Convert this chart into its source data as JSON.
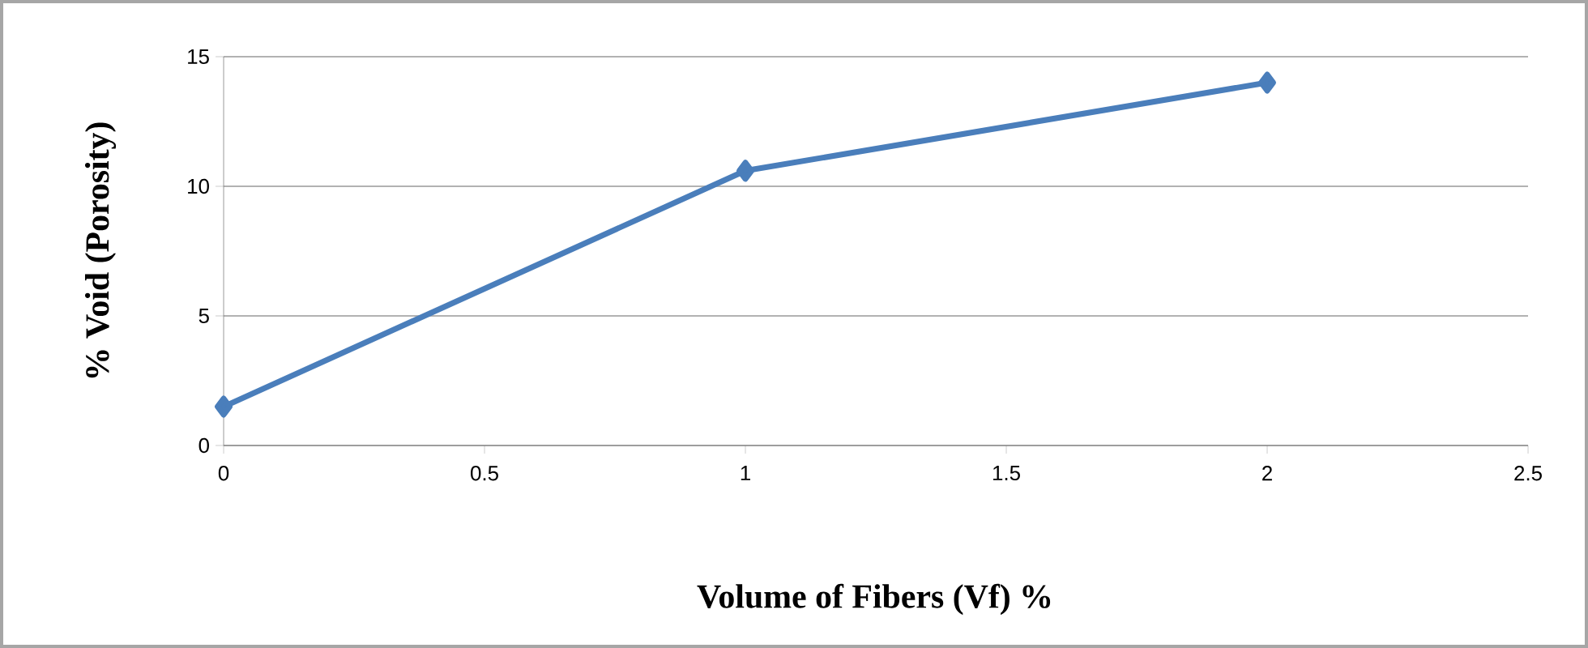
{
  "chart_data": {
    "type": "line",
    "xlabel": "Volume of Fibers (Vf) %",
    "ylabel": "% Void (Porosity)",
    "x": [
      0,
      1,
      2
    ],
    "series": [
      {
        "color": "#4a7ebb",
        "values": [
          1.5,
          10.6,
          14
        ]
      }
    ],
    "xlim": [
      0,
      2.5
    ],
    "xticks": [
      0,
      0.5,
      1,
      1.5,
      2,
      2.5
    ],
    "ylim": [
      0,
      15
    ],
    "yticks": [
      0,
      5,
      10,
      15
    ],
    "grid": "y",
    "marker": "diamond",
    "line_style": "solid"
  }
}
